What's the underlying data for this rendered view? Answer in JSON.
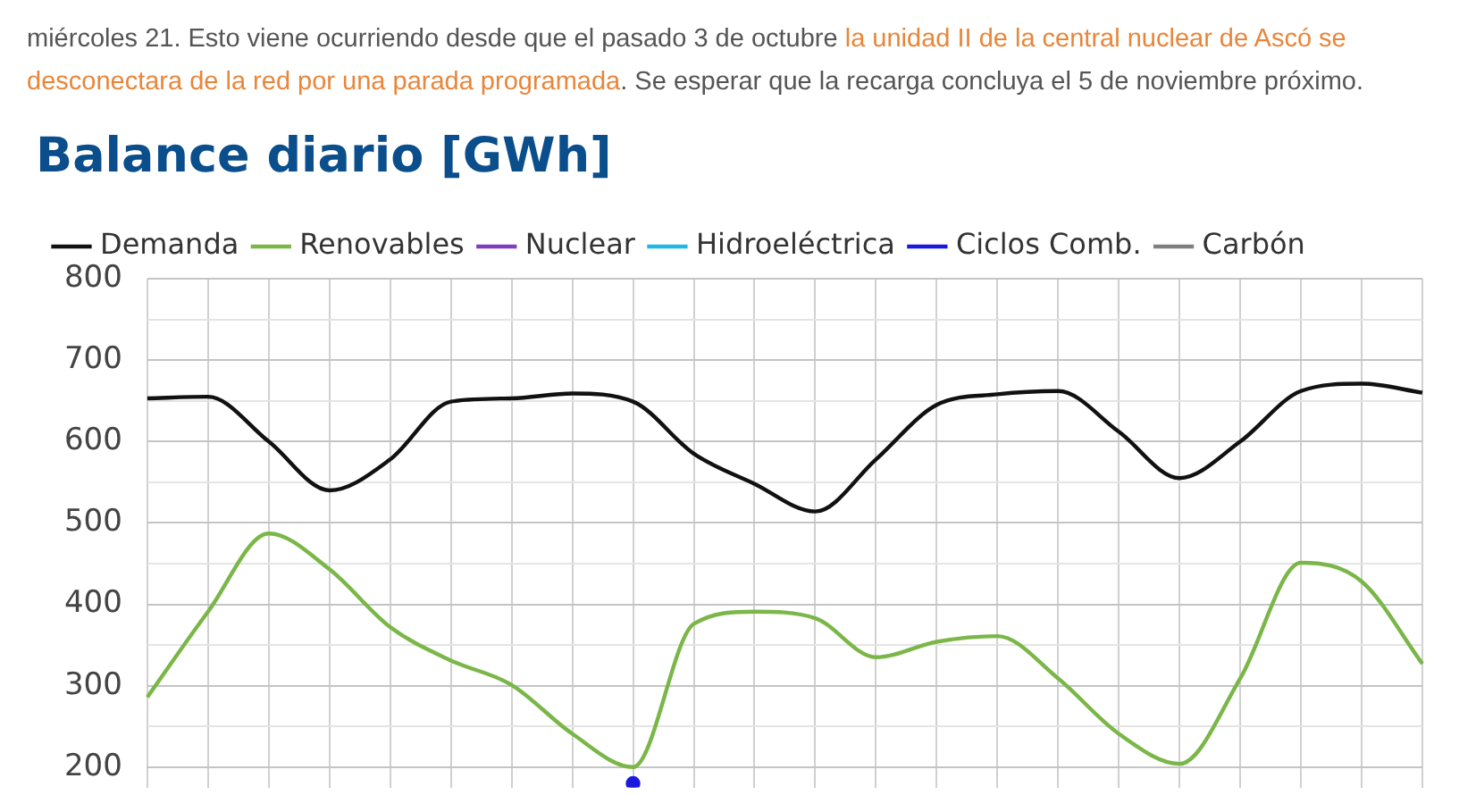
{
  "chart_data": {
    "type": "line",
    "title": "Balance diario [GWh]",
    "annotations": [
      "miércoles 21. Esto viene ocurriendo desde que el pasado 3 de octubre ",
      "la unidad II de la central nuclear de Ascó se desconectara de la red por una parada programada",
      ". Se esperar que la recarga concluya el 5 de noviembre próximo."
    ],
    "categories": [
      null,
      null,
      null,
      null,
      null,
      null,
      null,
      null,
      null,
      null,
      null,
      null,
      null,
      null,
      null,
      null,
      null,
      null,
      null,
      null,
      null,
      null
    ],
    "series": [
      {
        "name": "Demanda",
        "color": "#111111",
        "values": [
          653,
          655,
          600,
          540,
          578,
          649,
          653,
          659,
          649,
          585,
          548,
          514,
          578,
          645,
          658,
          662,
          612,
          555,
          600,
          662,
          671,
          660
        ]
      },
      {
        "name": "Renovables",
        "color": "#7ab648",
        "values": [
          286,
          391,
          487,
          443,
          372,
          331,
          301,
          241,
          200,
          376,
          391,
          383,
          335,
          354,
          361,
          309,
          241,
          204,
          309,
          451,
          428,
          327
        ]
      },
      {
        "name": "Nuclear",
        "color": "#7b3fbf",
        "values": [
          null,
          null,
          null,
          null,
          null,
          null,
          null,
          null,
          null,
          null,
          null,
          null,
          null,
          null,
          null,
          null,
          null,
          null,
          null,
          null,
          null,
          null
        ]
      },
      {
        "name": "Hidroeléctrica",
        "color": "#22b7e6",
        "values": [
          null,
          null,
          null,
          null,
          null,
          null,
          null,
          null,
          null,
          null,
          null,
          null,
          null,
          null,
          null,
          null,
          null,
          null,
          null,
          null,
          null,
          null
        ]
      },
      {
        "name": "Ciclos Comb.",
        "color": "#1a1adb",
        "marker": "circle",
        "values": [
          null,
          null,
          null,
          null,
          null,
          null,
          null,
          null,
          180,
          null,
          null,
          null,
          null,
          null,
          null,
          null,
          null,
          null,
          null,
          null,
          null,
          null
        ]
      },
      {
        "name": "Carbón",
        "color": "#808080",
        "values": [
          null,
          null,
          null,
          null,
          null,
          null,
          null,
          null,
          null,
          null,
          null,
          null,
          null,
          null,
          null,
          null,
          null,
          null,
          null,
          null,
          null,
          null
        ]
      }
    ],
    "ylim": [
      175,
      800
    ],
    "yticks": [
      200,
      {
        "value": 250,
        "label": null
      },
      300,
      {
        "value": 350,
        "label": null
      },
      400,
      {
        "value": 450,
        "label": null
      },
      500,
      {
        "value": 550,
        "label": null
      },
      600,
      {
        "value": 650,
        "label": null
      },
      700,
      {
        "value": 750,
        "label": null
      },
      800
    ],
    "grid": true,
    "legend": "top",
    "tick_labels": "y"
  }
}
